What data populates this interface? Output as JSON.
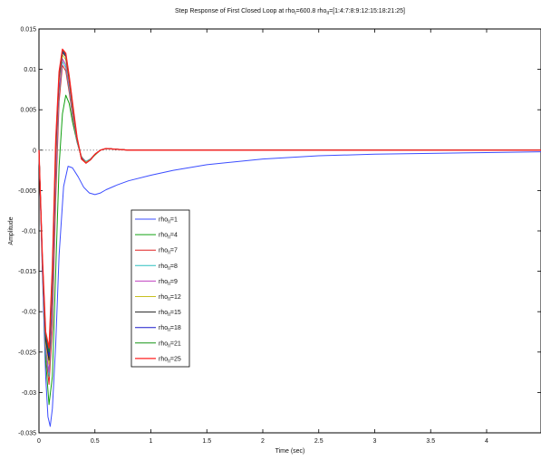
{
  "chart_data": {
    "type": "line",
    "title_main": "Step Response of First Closed Loop at rho",
    "title_sub1": "I",
    "title_mid": "=600.8 rho",
    "title_sub2": "II",
    "title_end": "=[1:4:7:8:9:12:15:18:21:25]",
    "xlabel": "Time (sec)",
    "ylabel": "Amplitude",
    "xlim": [
      0,
      4.5
    ],
    "ylim": [
      -0.035,
      0.015
    ],
    "xticks": [
      "0",
      "0.5",
      "1",
      "1.5",
      "2",
      "2.5",
      "3",
      "3.5",
      "4"
    ],
    "xtick_values": [
      0,
      0.5,
      1,
      1.5,
      2,
      2.5,
      3,
      3.5,
      4
    ],
    "yticks": [
      "0.015",
      "0.01",
      "0.005",
      "0",
      "-0.005",
      "-0.01",
      "-0.015",
      "-0.02",
      "-0.025",
      "-0.03",
      "-0.035"
    ],
    "ytick_values": [
      0.015,
      0.01,
      0.005,
      0,
      -0.005,
      -0.01,
      -0.015,
      -0.02,
      -0.025,
      -0.03,
      -0.035
    ],
    "grid": false,
    "legend_position": "left-center",
    "series": [
      {
        "name": "rho",
        "sub": "II",
        "suffix": "=1",
        "color": "#3b4dff",
        "width": 1.0,
        "x": [
          0,
          0.03,
          0.06,
          0.08,
          0.1,
          0.12,
          0.15,
          0.18,
          0.22,
          0.26,
          0.3,
          0.35,
          0.4,
          0.45,
          0.5,
          0.55,
          0.6,
          0.7,
          0.8,
          1.0,
          1.2,
          1.5,
          2.0,
          2.5,
          3.0,
          3.5,
          4.0,
          4.5
        ],
        "y": [
          0,
          -0.015,
          -0.028,
          -0.033,
          -0.0342,
          -0.032,
          -0.024,
          -0.013,
          -0.0045,
          -0.002,
          -0.0022,
          -0.0033,
          -0.0046,
          -0.0053,
          -0.0055,
          -0.0053,
          -0.0049,
          -0.0043,
          -0.0038,
          -0.0031,
          -0.0025,
          -0.0018,
          -0.0011,
          -0.0007,
          -0.0005,
          -0.0004,
          -0.0003,
          -0.0002
        ]
      },
      {
        "name": "rho",
        "sub": "II",
        "suffix": "=4",
        "color": "#11a011",
        "width": 1.0,
        "x": [
          0,
          0.03,
          0.06,
          0.09,
          0.12,
          0.15,
          0.18,
          0.21,
          0.24,
          0.27,
          0.3,
          0.34,
          0.38,
          0.42,
          0.46,
          0.5,
          0.55,
          0.6,
          0.7,
          0.8,
          1.0,
          4.5
        ],
        "y": [
          0,
          -0.014,
          -0.026,
          -0.0315,
          -0.028,
          -0.015,
          -0.002,
          0.0045,
          0.0068,
          0.0058,
          0.0035,
          0.001,
          -0.0008,
          -0.0015,
          -0.0012,
          -0.0006,
          0,
          0.0002,
          0.0001,
          0,
          0,
          0
        ]
      },
      {
        "name": "rho",
        "sub": "II",
        "suffix": "=7",
        "color": "#e02020",
        "width": 1.0,
        "x": [
          0,
          0.03,
          0.06,
          0.09,
          0.12,
          0.15,
          0.18,
          0.21,
          0.24,
          0.27,
          0.3,
          0.34,
          0.38,
          0.42,
          0.46,
          0.5,
          0.55,
          0.6,
          0.7,
          0.8,
          1.0,
          4.5
        ],
        "y": [
          0,
          -0.014,
          -0.025,
          -0.029,
          -0.022,
          -0.006,
          0.006,
          0.0105,
          0.0098,
          0.0072,
          0.0042,
          0.001,
          -0.0009,
          -0.0014,
          -0.0011,
          -0.0005,
          0,
          0.0002,
          0.0001,
          0,
          0,
          0
        ]
      },
      {
        "name": "rho",
        "sub": "II",
        "suffix": "=8",
        "color": "#2bbfbf",
        "width": 1.0,
        "x": [
          0,
          0.03,
          0.06,
          0.09,
          0.12,
          0.15,
          0.18,
          0.21,
          0.24,
          0.27,
          0.3,
          0.34,
          0.38,
          0.42,
          0.46,
          0.5,
          0.55,
          0.6,
          0.7,
          0.8,
          1.0,
          4.5
        ],
        "y": [
          0,
          -0.014,
          -0.025,
          -0.028,
          -0.02,
          -0.004,
          0.007,
          0.011,
          0.0102,
          0.0076,
          0.0045,
          0.001,
          -0.0009,
          -0.0014,
          -0.0011,
          -0.0005,
          0,
          0.0002,
          0.0001,
          0,
          0,
          0
        ]
      },
      {
        "name": "rho",
        "sub": "II",
        "suffix": "=9",
        "color": "#c040c0",
        "width": 1.0,
        "x": [
          0,
          0.03,
          0.06,
          0.09,
          0.12,
          0.15,
          0.18,
          0.21,
          0.24,
          0.27,
          0.3,
          0.34,
          0.38,
          0.42,
          0.46,
          0.5,
          0.55,
          0.6,
          0.7,
          0.8,
          1.0,
          4.5
        ],
        "y": [
          0,
          -0.014,
          -0.0245,
          -0.0275,
          -0.019,
          -0.003,
          0.0075,
          0.0113,
          0.0106,
          0.008,
          0.0048,
          0.0012,
          -0.0009,
          -0.0015,
          -0.0012,
          -0.0005,
          0,
          0.0002,
          0.0001,
          0,
          0,
          0
        ]
      },
      {
        "name": "rho",
        "sub": "II",
        "suffix": "=12",
        "color": "#c8c020",
        "width": 1.0,
        "x": [
          0,
          0.03,
          0.06,
          0.09,
          0.12,
          0.15,
          0.18,
          0.21,
          0.24,
          0.27,
          0.3,
          0.34,
          0.38,
          0.42,
          0.46,
          0.5,
          0.55,
          0.6,
          0.7,
          0.8,
          1.0,
          4.5
        ],
        "y": [
          0,
          -0.0135,
          -0.024,
          -0.0265,
          -0.017,
          -0.001,
          0.0085,
          0.0118,
          0.0112,
          0.0085,
          0.0052,
          0.0013,
          -0.001,
          -0.0015,
          -0.0012,
          -0.0005,
          0,
          0.0002,
          0.0001,
          0,
          0,
          0
        ]
      },
      {
        "name": "rho",
        "sub": "II",
        "suffix": "=15",
        "color": "#222222",
        "width": 1.0,
        "x": [
          0,
          0.03,
          0.06,
          0.09,
          0.12,
          0.15,
          0.18,
          0.21,
          0.24,
          0.27,
          0.3,
          0.34,
          0.38,
          0.42,
          0.46,
          0.5,
          0.55,
          0.6,
          0.7,
          0.8,
          1.0,
          4.5
        ],
        "y": [
          0,
          -0.0135,
          -0.0235,
          -0.026,
          -0.016,
          0,
          0.009,
          0.0121,
          0.0116,
          0.0088,
          0.0055,
          0.0014,
          -0.001,
          -0.0016,
          -0.0012,
          -0.0005,
          0,
          0.0002,
          0.0001,
          0,
          0,
          0
        ]
      },
      {
        "name": "rho",
        "sub": "II",
        "suffix": "=18",
        "color": "#1a1acc",
        "width": 1.0,
        "x": [
          0,
          0.03,
          0.06,
          0.09,
          0.12,
          0.15,
          0.18,
          0.21,
          0.24,
          0.27,
          0.3,
          0.34,
          0.38,
          0.42,
          0.46,
          0.5,
          0.55,
          0.6,
          0.7,
          0.8,
          1.0,
          4.5
        ],
        "y": [
          0,
          -0.0133,
          -0.023,
          -0.0255,
          -0.0155,
          0.0005,
          0.0093,
          0.0123,
          0.0118,
          0.009,
          0.0057,
          0.0015,
          -0.0011,
          -0.0016,
          -0.0012,
          -0.0005,
          0,
          0.0002,
          0.0001,
          0,
          0,
          0
        ]
      },
      {
        "name": "rho",
        "sub": "II",
        "suffix": "=21",
        "color": "#159515",
        "width": 1.0,
        "x": [
          0,
          0.03,
          0.06,
          0.09,
          0.12,
          0.15,
          0.18,
          0.21,
          0.24,
          0.27,
          0.3,
          0.34,
          0.38,
          0.42,
          0.46,
          0.5,
          0.55,
          0.6,
          0.7,
          0.8,
          1.0,
          4.5
        ],
        "y": [
          0,
          -0.0132,
          -0.0228,
          -0.025,
          -0.015,
          0.001,
          0.0095,
          0.0124,
          0.0119,
          0.0091,
          0.0058,
          0.0015,
          -0.0011,
          -0.0016,
          -0.0012,
          -0.0005,
          0,
          0.0002,
          0.0001,
          0,
          0,
          0
        ]
      },
      {
        "name": "rho",
        "sub": "II",
        "suffix": "=25",
        "color": "#ff2020",
        "width": 1.3,
        "x": [
          0,
          0.03,
          0.06,
          0.09,
          0.12,
          0.15,
          0.18,
          0.21,
          0.24,
          0.27,
          0.3,
          0.34,
          0.38,
          0.42,
          0.46,
          0.5,
          0.55,
          0.6,
          0.7,
          0.8,
          1.0,
          4.5
        ],
        "y": [
          0,
          -0.013,
          -0.0225,
          -0.0245,
          -0.0145,
          0.0012,
          0.0097,
          0.0125,
          0.012,
          0.0092,
          0.0059,
          0.0016,
          -0.0011,
          -0.0016,
          -0.0012,
          -0.0005,
          0,
          0.0002,
          0.0001,
          0,
          0,
          0
        ]
      }
    ]
  }
}
